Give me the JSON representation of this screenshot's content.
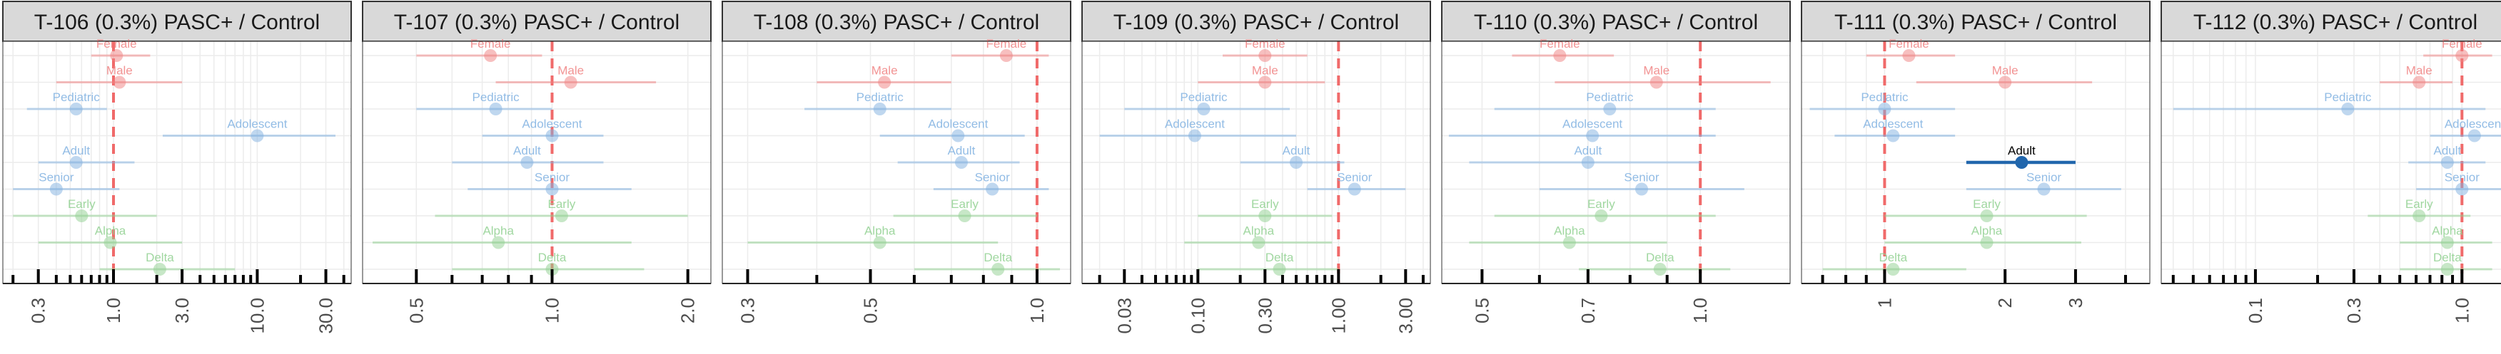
{
  "colors": {
    "female_male": "#f08080",
    "age": "#7fb0e0",
    "variant": "#8fd08f",
    "highlight": "#2166ac",
    "ref_line": "#f06a6a"
  },
  "chart_data": [
    {
      "type": "forest",
      "title": "T-106 (0.3%) PASC+ / Control",
      "xscale": "log",
      "xlim": [
        0.17,
        45
      ],
      "xticks": [
        0.3,
        1.0,
        3.0,
        10.0,
        30.0
      ],
      "xtick_labels": [
        "0.3",
        "1.0",
        "3.0",
        "10.0",
        "30.0"
      ],
      "minor_ticks": [
        0.2,
        0.4,
        0.5,
        0.6,
        0.7,
        0.8,
        0.9,
        2,
        4,
        5,
        6,
        7,
        8,
        9,
        20,
        40
      ],
      "ref_line": 1.0,
      "points": [
        {
          "label": "Female",
          "group": "sex",
          "est": 1.05,
          "lo": 0.7,
          "hi": 1.8
        },
        {
          "label": "Male",
          "group": "sex",
          "est": 1.1,
          "lo": 0.4,
          "hi": 3.0
        },
        {
          "label": "Pediatric",
          "group": "age",
          "est": 0.55,
          "lo": 0.25,
          "hi": 0.9
        },
        {
          "label": "Adolescent",
          "group": "age",
          "est": 10.0,
          "lo": 2.2,
          "hi": 35.0
        },
        {
          "label": "Adult",
          "group": "age",
          "est": 0.55,
          "lo": 0.3,
          "hi": 1.4
        },
        {
          "label": "Senior",
          "group": "age",
          "est": 0.4,
          "lo": 0.2,
          "hi": 1.1
        },
        {
          "label": "Early",
          "group": "variant",
          "est": 0.6,
          "lo": 0.2,
          "hi": 2.0
        },
        {
          "label": "Alpha",
          "group": "variant",
          "est": 0.95,
          "lo": 0.3,
          "hi": 3.0
        },
        {
          "label": "Delta",
          "group": "variant",
          "est": 2.1,
          "lo": 0.8,
          "hi": 7.0
        }
      ]
    },
    {
      "type": "forest",
      "title": "T-107 (0.3%) PASC+ / Control",
      "xscale": "log",
      "xlim": [
        0.38,
        2.25
      ],
      "xticks": [
        0.5,
        1.0,
        2.0
      ],
      "xtick_labels": [
        "0.5",
        "1.0",
        "2.0"
      ],
      "minor_ticks": [
        0.6,
        0.7,
        0.8,
        0.9
      ],
      "ref_line": 1.0,
      "points": [
        {
          "label": "Female",
          "group": "sex",
          "est": 0.73,
          "lo": 0.5,
          "hi": 0.95
        },
        {
          "label": "Male",
          "group": "sex",
          "est": 1.1,
          "lo": 0.75,
          "hi": 1.7
        },
        {
          "label": "Pediatric",
          "group": "age",
          "est": 0.75,
          "lo": 0.5,
          "hi": 1.0
        },
        {
          "label": "Adolescent",
          "group": "age",
          "est": 1.0,
          "lo": 0.7,
          "hi": 1.3
        },
        {
          "label": "Adult",
          "group": "age",
          "est": 0.88,
          "lo": 0.6,
          "hi": 1.3
        },
        {
          "label": "Senior",
          "group": "age",
          "est": 1.0,
          "lo": 0.65,
          "hi": 1.5
        },
        {
          "label": "Early",
          "group": "variant",
          "est": 1.05,
          "lo": 0.55,
          "hi": 2.0
        },
        {
          "label": "Alpha",
          "group": "variant",
          "est": 0.76,
          "lo": 0.4,
          "hi": 1.5
        },
        {
          "label": "Delta",
          "group": "variant",
          "est": 1.0,
          "lo": 0.6,
          "hi": 1.6
        }
      ]
    },
    {
      "type": "forest",
      "title": "T-108 (0.3%) PASC+ / Control",
      "xscale": "log",
      "xlim": [
        0.27,
        1.15
      ],
      "xticks": [
        0.3,
        0.5,
        1.0
      ],
      "xtick_labels": [
        "0.3",
        "0.5",
        "1.0"
      ],
      "minor_ticks": [
        0.4,
        0.6,
        0.7,
        0.8,
        0.9
      ],
      "ref_line": 1.0,
      "points": [
        {
          "label": "Female",
          "group": "sex",
          "est": 0.88,
          "lo": 0.7,
          "hi": 1.05
        },
        {
          "label": "Male",
          "group": "sex",
          "est": 0.53,
          "lo": 0.4,
          "hi": 0.7
        },
        {
          "label": "Pediatric",
          "group": "age",
          "est": 0.52,
          "lo": 0.38,
          "hi": 0.7
        },
        {
          "label": "Adolescent",
          "group": "age",
          "est": 0.72,
          "lo": 0.52,
          "hi": 0.95
        },
        {
          "label": "Adult",
          "group": "age",
          "est": 0.73,
          "lo": 0.56,
          "hi": 0.93
        },
        {
          "label": "Senior",
          "group": "age",
          "est": 0.83,
          "lo": 0.65,
          "hi": 1.05
        },
        {
          "label": "Early",
          "group": "variant",
          "est": 0.74,
          "lo": 0.55,
          "hi": 1.0
        },
        {
          "label": "Alpha",
          "group": "variant",
          "est": 0.52,
          "lo": 0.3,
          "hi": 0.85
        },
        {
          "label": "Delta",
          "group": "variant",
          "est": 0.85,
          "lo": 0.6,
          "hi": 1.1
        }
      ]
    },
    {
      "type": "forest",
      "title": "T-109 (0.3%) PASC+ / Control",
      "xscale": "log",
      "xlim": [
        0.015,
        4.5
      ],
      "xticks": [
        0.03,
        0.1,
        0.3,
        1.0,
        3.0
      ],
      "xtick_labels": [
        "0.03",
        "0.10",
        "0.30",
        "1.00",
        "3.00"
      ],
      "minor_ticks": [
        0.02,
        0.04,
        0.05,
        0.06,
        0.07,
        0.08,
        0.09,
        0.2,
        0.4,
        0.5,
        0.6,
        0.7,
        0.8,
        0.9,
        2,
        4
      ],
      "ref_line": 1.0,
      "points": [
        {
          "label": "Female",
          "group": "sex",
          "est": 0.3,
          "lo": 0.15,
          "hi": 0.6
        },
        {
          "label": "Male",
          "group": "sex",
          "est": 0.3,
          "lo": 0.1,
          "hi": 0.8
        },
        {
          "label": "Pediatric",
          "group": "age",
          "est": 0.11,
          "lo": 0.03,
          "hi": 0.45
        },
        {
          "label": "Adolescent",
          "group": "age",
          "est": 0.095,
          "lo": 0.02,
          "hi": 0.5
        },
        {
          "label": "Adult",
          "group": "age",
          "est": 0.5,
          "lo": 0.2,
          "hi": 1.1
        },
        {
          "label": "Senior",
          "group": "age",
          "est": 1.3,
          "lo": 0.6,
          "hi": 3.0
        },
        {
          "label": "Early",
          "group": "variant",
          "est": 0.3,
          "lo": 0.1,
          "hi": 0.9
        },
        {
          "label": "Alpha",
          "group": "variant",
          "est": 0.27,
          "lo": 0.08,
          "hi": 0.9
        },
        {
          "label": "Delta",
          "group": "variant",
          "est": 0.38,
          "lo": 0.1,
          "hi": 1.0
        }
      ]
    },
    {
      "type": "forest",
      "title": "T-110 (0.3%) PASC+ / Control",
      "xscale": "log",
      "xlim": [
        0.44,
        1.33
      ],
      "xticks": [
        0.5,
        0.7,
        1.0
      ],
      "xtick_labels": [
        "0.5",
        "0.7",
        "1.0"
      ],
      "minor_ticks": [
        0.6,
        0.8,
        0.9
      ],
      "ref_line": 1.0,
      "points": [
        {
          "label": "Female",
          "group": "sex",
          "est": 0.64,
          "lo": 0.55,
          "hi": 0.76
        },
        {
          "label": "Male",
          "group": "sex",
          "est": 0.87,
          "lo": 0.63,
          "hi": 1.25
        },
        {
          "label": "Pediatric",
          "group": "age",
          "est": 0.75,
          "lo": 0.52,
          "hi": 1.05
        },
        {
          "label": "Adolescent",
          "group": "age",
          "est": 0.71,
          "lo": 0.45,
          "hi": 1.05
        },
        {
          "label": "Adult",
          "group": "age",
          "est": 0.7,
          "lo": 0.48,
          "hi": 1.0
        },
        {
          "label": "Senior",
          "group": "age",
          "est": 0.83,
          "lo": 0.6,
          "hi": 1.15
        },
        {
          "label": "Early",
          "group": "variant",
          "est": 0.73,
          "lo": 0.52,
          "hi": 1.05
        },
        {
          "label": "Alpha",
          "group": "variant",
          "est": 0.66,
          "lo": 0.48,
          "hi": 0.9
        },
        {
          "label": "Delta",
          "group": "variant",
          "est": 0.88,
          "lo": 0.68,
          "hi": 1.1
        }
      ]
    },
    {
      "type": "forest",
      "title": "T-111 (0.3%) PASC+ / Control",
      "xscale": "log",
      "xlim": [
        0.62,
        4.6
      ],
      "xticks": [
        1,
        2,
        3
      ],
      "xtick_labels": [
        "1",
        "2",
        "3"
      ],
      "minor_ticks": [
        0.7,
        0.8,
        0.9,
        4
      ],
      "ref_line": 1.0,
      "points": [
        {
          "label": "Female",
          "group": "sex",
          "est": 1.15,
          "lo": 0.9,
          "hi": 1.5
        },
        {
          "label": "Male",
          "group": "sex",
          "est": 2.0,
          "lo": 1.2,
          "hi": 3.3
        },
        {
          "label": "Pediatric",
          "group": "age",
          "est": 1.0,
          "lo": 0.65,
          "hi": 1.5
        },
        {
          "label": "Adolescent",
          "group": "age",
          "est": 1.05,
          "lo": 0.75,
          "hi": 1.5
        },
        {
          "label": "Adult",
          "group": "age",
          "est": 2.2,
          "lo": 1.6,
          "hi": 3.0,
          "highlight": true
        },
        {
          "label": "Senior",
          "group": "age",
          "est": 2.5,
          "lo": 1.6,
          "hi": 3.9
        },
        {
          "label": "Early",
          "group": "variant",
          "est": 1.8,
          "lo": 1.0,
          "hi": 3.2
        },
        {
          "label": "Alpha",
          "group": "variant",
          "est": 1.8,
          "lo": 1.0,
          "hi": 3.1
        },
        {
          "label": "Delta",
          "group": "variant",
          "est": 1.05,
          "lo": 0.7,
          "hi": 1.6
        }
      ]
    },
    {
      "type": "forest",
      "title": "T-112 (0.3%) PASC+ / Control",
      "xscale": "log",
      "xlim": [
        0.035,
        1.7
      ],
      "xticks": [
        0.1,
        0.3,
        1.0
      ],
      "xtick_labels": [
        "0.1",
        "0.3",
        "1.0"
      ],
      "minor_ticks": [
        0.04,
        0.05,
        0.06,
        0.07,
        0.08,
        0.09,
        0.2,
        0.4,
        0.5,
        0.6,
        0.7,
        0.8,
        0.9
      ],
      "ref_line": 1.0,
      "points": [
        {
          "label": "Female",
          "group": "sex",
          "est": 1.0,
          "lo": 0.65,
          "hi": 1.4
        },
        {
          "label": "Male",
          "group": "sex",
          "est": 0.62,
          "lo": 0.4,
          "hi": 0.9
        },
        {
          "label": "Pediatric",
          "group": "age",
          "est": 0.28,
          "lo": 0.04,
          "hi": 1.3
        },
        {
          "label": "Adolescent",
          "group": "age",
          "est": 1.15,
          "lo": 0.7,
          "hi": 1.6
        },
        {
          "label": "Adult",
          "group": "age",
          "est": 0.85,
          "lo": 0.55,
          "hi": 1.3
        },
        {
          "label": "Senior",
          "group": "age",
          "est": 1.0,
          "lo": 0.6,
          "hi": 1.6
        },
        {
          "label": "Early",
          "group": "variant",
          "est": 0.62,
          "lo": 0.35,
          "hi": 1.1
        },
        {
          "label": "Alpha",
          "group": "variant",
          "est": 0.85,
          "lo": 0.5,
          "hi": 1.4
        },
        {
          "label": "Delta",
          "group": "variant",
          "est": 0.85,
          "lo": 0.5,
          "hi": 1.4
        }
      ]
    }
  ]
}
